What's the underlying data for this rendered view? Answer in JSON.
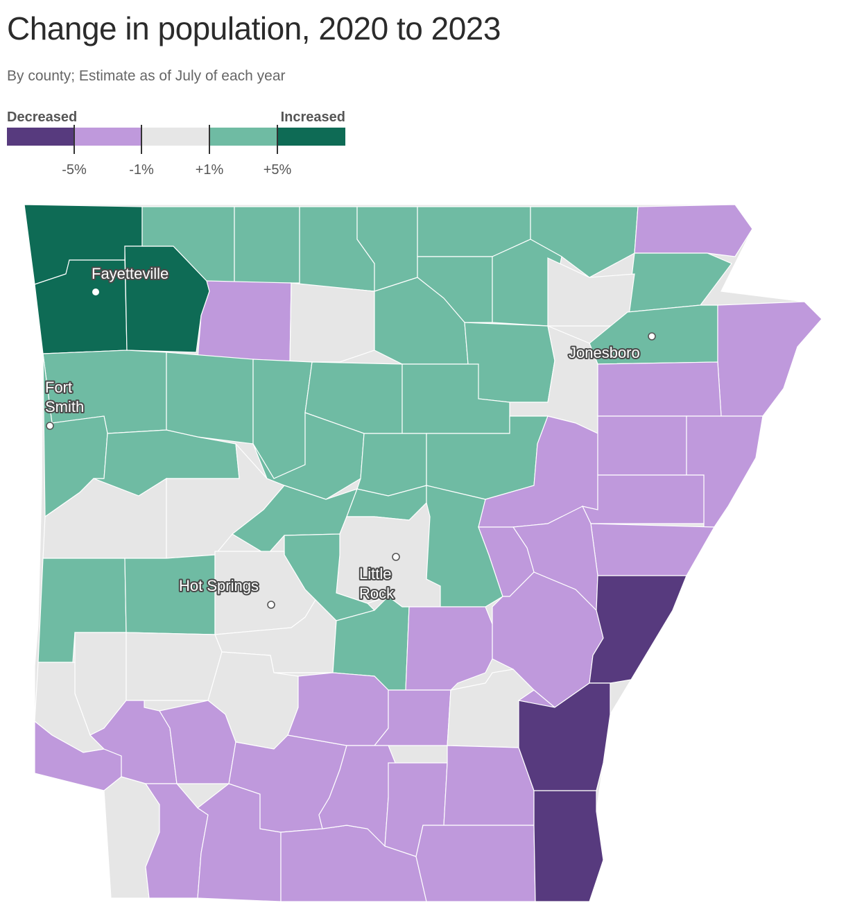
{
  "title": "Change in population, 2020 to 2023",
  "subtitle": "By county; Estimate as of July of each year",
  "legend": {
    "left_label": "Decreased",
    "right_label": "Increased",
    "ticks": [
      "-5%",
      "-1%",
      "+1%",
      "+5%"
    ],
    "colors": [
      "#573a7e",
      "#bf99dc",
      "#e6e6e6",
      "#6fbba3",
      "#0e6b55"
    ]
  },
  "categories": {
    "dec_big": "#573a7e",
    "dec": "#bf99dc",
    "flat": "#e6e6e6",
    "inc": "#6fbba3",
    "inc_big": "#0e6b55"
  },
  "cities": [
    {
      "name": "Fayetteville",
      "lines": [
        "Fayetteville"
      ]
    },
    {
      "name": "Fort Smith",
      "lines": [
        "Fort",
        "Smith"
      ]
    },
    {
      "name": "Jonesboro",
      "lines": [
        "Jonesboro"
      ]
    },
    {
      "name": "Hot Springs",
      "lines": [
        "Hot Springs"
      ]
    },
    {
      "name": "Little Rock",
      "lines": [
        "Little",
        "Rock"
      ]
    }
  ]
}
